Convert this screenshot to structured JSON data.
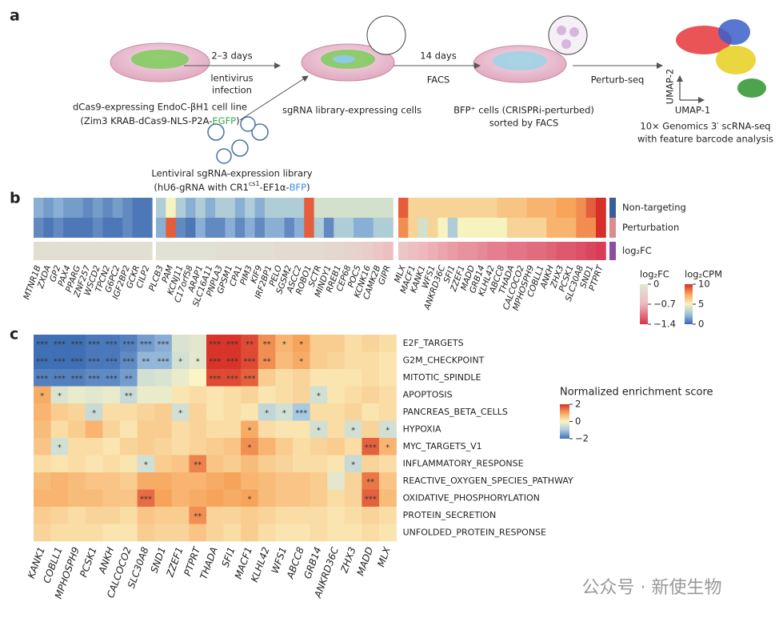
{
  "panel_labels": [
    "a",
    "b",
    "c"
  ],
  "panel_a": {
    "step1_time": "2–3 days",
    "step1_method": [
      "lentivirus",
      "infection"
    ],
    "cells_line": "dCas9-expressing EndoC-βH1 cell line",
    "cells_construct": [
      "(Zim3 KRAB-dCas9-NLS-P2A-",
      "EGFP",
      ")"
    ],
    "library_title": "Lentiviral sgRNA-expression library",
    "library_construct": [
      "(hU6-gRNA with CR1",
      "cs1",
      "-EF1α-",
      "BFP",
      ")"
    ],
    "library_cells": "sgRNA library-expressing cells",
    "step2_time": "14 days",
    "step2_method": "FACS",
    "sorted": [
      "BFP⁺ cells (CRISPRi-perturbed)",
      "sorted by FACS"
    ],
    "step3_method": "Perturb-seq",
    "umap_y": "UMAP-2",
    "umap_x": "UMAP-1",
    "readout": [
      "10× Genomics 3′ scRNA-seq",
      "with feature barcode analysis"
    ]
  },
  "panel_b": {
    "rows": [
      "Non-targeting",
      "Perturbation",
      "log₂FC"
    ],
    "groups": [
      {
        "genes": [
          "MTNR1B",
          "ZXDA",
          "GP2",
          "PAX4",
          "PPARG",
          "ZNF257",
          "WSCD2",
          "TPCN2",
          "G6PC2",
          "IGF2BP2",
          "GCKR",
          "CILP2"
        ],
        "non_targeting": [
          2,
          1.5,
          2,
          1.5,
          1.5,
          1,
          1.5,
          1,
          1.5,
          1,
          0.5,
          0.5
        ],
        "perturbation": [
          1,
          0.5,
          1,
          0.5,
          0.5,
          0.5,
          1,
          0.5,
          0.5,
          1,
          0.5,
          0.5
        ],
        "log2fc": [
          -0.15,
          -0.15,
          -0.15,
          -0.15,
          -0.15,
          -0.15,
          -0.15,
          -0.15,
          -0.15,
          -0.15,
          -0.15,
          -0.15
        ]
      },
      {
        "genes": [
          "PLCB3",
          "PAM",
          "KCNJ11",
          "C17orf58",
          "ARAP1",
          "SLC16A11",
          "PNPLA3",
          "GPSM1",
          "CPA1",
          "PIM3",
          "KIF9",
          "IRF2BP1",
          "PELO",
          "SGSM2",
          "ASCC2",
          "ROBO1",
          "SCTR",
          "MINDY1",
          "RREB1",
          "CEP68",
          "POC5",
          "KCNK16",
          "CAMK2B",
          "GIPR"
        ],
        "non_targeting": [
          3,
          5,
          3,
          2,
          3,
          2,
          3,
          3,
          2,
          3,
          2,
          3,
          3,
          3,
          3,
          9,
          4,
          4,
          4,
          4,
          4,
          4,
          4,
          4
        ],
        "perturbation": [
          2,
          9,
          1,
          0.5,
          2,
          1,
          1,
          2,
          1,
          2,
          1,
          2,
          2,
          1,
          2,
          9,
          3,
          1,
          3,
          3,
          2,
          2,
          3,
          3
        ],
        "log2fc": [
          -0.1,
          -0.1,
          -0.1,
          -0.1,
          -0.1,
          -0.1,
          -0.15,
          -0.15,
          -0.15,
          -0.15,
          -0.15,
          -0.15,
          -0.2,
          -0.2,
          -0.2,
          -0.2,
          -0.2,
          -0.25,
          -0.25,
          -0.3,
          -0.35,
          -0.4,
          -0.5,
          -0.6
        ]
      },
      {
        "genes": [
          "MLX",
          "MACF1",
          "KANK1",
          "WFS1",
          "ANKRD36C",
          "SFI1",
          "ZZEF1",
          "MADD",
          "GRB14",
          "KLHL42",
          "ABCC8",
          "THADA",
          "CALCOCO2",
          "MPHOSPH9",
          "COBLL1",
          "ANKH",
          "ZHX3",
          "PCSK1",
          "SLC30A8",
          "SND1",
          "PTPRT"
        ],
        "non_targeting": [
          9,
          6,
          6,
          6,
          6,
          6,
          6,
          6,
          6,
          6,
          6.5,
          6.5,
          6.5,
          7,
          7,
          7,
          7.5,
          7.5,
          8,
          9,
          11
        ],
        "perturbation": [
          8,
          6,
          4,
          6,
          5,
          3,
          5,
          5,
          5,
          5,
          5,
          6,
          6,
          6,
          6,
          7,
          7,
          7,
          8,
          8,
          10
        ],
        "log2fc": [
          -0.5,
          -0.6,
          -0.7,
          -0.75,
          -0.8,
          -0.85,
          -0.9,
          -0.9,
          -0.95,
          -1,
          -1,
          -1.05,
          -1.05,
          -1.1,
          -1.1,
          -1.15,
          -1.2,
          -1.2,
          -1.25,
          -1.3,
          -1.35
        ]
      }
    ],
    "row_colors": [
      "#3a5e9c",
      "#d98d8d",
      "#8e4ea0"
    ],
    "legend_fc": {
      "title": "log₂FC",
      "lim": [
        -1.4,
        0
      ],
      "colors": [
        "#d8334f",
        "#eeb8bd",
        "#dfe9d8"
      ],
      "ticks": [
        0,
        {
          "value": -0.7,
          "label": "−0.7"
        },
        {
          "value": -1.4,
          "label": "−1.4"
        }
      ]
    },
    "legend_cpm": {
      "title": "log₂CPM",
      "lim": [
        0,
        10
      ],
      "colors": [
        "#3b64ae",
        "#9cc3dd",
        "#f7f3c0",
        "#f8a45a",
        "#d62f27"
      ],
      "ticks": [
        10,
        5,
        0
      ]
    }
  },
  "panel_c": {
    "genes": [
      "KANK1",
      "COBLL1",
      "MPHOSPH9",
      "PCSK1",
      "ANKH",
      "CALCOCO2",
      "SLC30A8",
      "SND1",
      "ZZEF1",
      "PTPRT",
      "THADA",
      "SFI1",
      "MACF1",
      "KLHL42",
      "WFS1",
      "ABCC8",
      "GRB14",
      "ANKRD36C",
      "ZHX3",
      "MADD",
      "MLX"
    ],
    "pathways": [
      "E2F_TARGETS",
      "G2M_CHECKPOINT",
      "MITOTIC_SPINDLE",
      "APOPTOSIS",
      "PANCREAS_BETA_CELLS",
      "HYPOXIA",
      "MYC_TARGETS_V1",
      "INFLAMMATORY_RESPONSE",
      "REACTIVE_OXYGEN_SPECIES_PATHWAY",
      "OXIDATIVE_PHOSPHORYLATION",
      "PROTEIN_SECRETION",
      "UNFOLDED_PROTEIN_RESPONSE"
    ],
    "nes": [
      [
        -2,
        -2,
        -2,
        -1.9,
        -1.9,
        -1.8,
        -1.5,
        -1.3,
        -0.4,
        -0.3,
        2,
        2,
        1.8,
        1.2,
        0.8,
        1,
        0.5,
        0.5,
        0.3,
        0.4,
        0.3
      ],
      [
        -2,
        -2,
        -2,
        -1.9,
        -1.9,
        -1.7,
        -1.2,
        -1.2,
        -0.5,
        -0.3,
        2,
        2,
        1.8,
        1.2,
        0.7,
        0.9,
        0.5,
        0.4,
        0.3,
        0.3,
        0.2
      ],
      [
        -1.8,
        -1.8,
        -1.8,
        -1.7,
        -1.7,
        -1.5,
        -0.5,
        -0.4,
        -0.2,
        0,
        1.8,
        1.8,
        1.6,
        0.5,
        0.3,
        0.4,
        0.2,
        0.2,
        0.2,
        0.3,
        0.2
      ],
      [
        0.9,
        -0.4,
        -0.2,
        -0.3,
        -0.2,
        -0.6,
        -0.2,
        -0.2,
        0.2,
        0.3,
        0.2,
        0.3,
        0.4,
        0.2,
        0.3,
        0.4,
        -0.5,
        0.2,
        0.3,
        0.4,
        0.3
      ],
      [
        0.8,
        0.5,
        0.4,
        -0.6,
        0.3,
        0.3,
        0.4,
        0.5,
        -0.5,
        0.4,
        0.2,
        0.3,
        0.2,
        -0.7,
        -0.5,
        -1,
        0.3,
        0.3,
        0.4,
        0.2,
        0.3
      ],
      [
        0.7,
        0.3,
        0.5,
        0.8,
        0.4,
        0.2,
        0.5,
        0.5,
        0.3,
        0.4,
        0.3,
        0.3,
        0.9,
        0.3,
        0.2,
        0.2,
        -0.5,
        0.3,
        -0.5,
        0.4,
        -0.5
      ],
      [
        0.6,
        -0.5,
        0.3,
        0.3,
        0.2,
        0.4,
        0.5,
        0.4,
        0.3,
        0.4,
        0.5,
        0.6,
        1.2,
        0.8,
        0.5,
        0.3,
        0.4,
        0.5,
        0.3,
        1.6,
        0.8
      ],
      [
        0.3,
        0.2,
        0.3,
        0.2,
        0.3,
        0.2,
        -0.5,
        0.5,
        0.6,
        1.3,
        0.6,
        0.5,
        0.7,
        0.5,
        0.4,
        0.3,
        0.3,
        0.2,
        -0.6,
        0.4,
        0.3
      ],
      [
        0.7,
        0.8,
        0.7,
        0.6,
        0.6,
        0.5,
        0.9,
        0.9,
        0.8,
        0.8,
        0.9,
        1,
        0.8,
        0.7,
        0.6,
        0.6,
        0.5,
        -0.3,
        0.4,
        1.4,
        0.6
      ],
      [
        0.8,
        0.8,
        0.7,
        0.7,
        0.6,
        0.6,
        1.5,
        1,
        0.8,
        0.9,
        1,
        0.9,
        1,
        0.7,
        0.6,
        0.6,
        0.5,
        0.3,
        0.4,
        1.6,
        0.7
      ],
      [
        0.5,
        0.4,
        0.3,
        0.4,
        0.4,
        0.3,
        0.6,
        0.5,
        0.5,
        1.2,
        0.4,
        0.4,
        0.5,
        0.4,
        0.3,
        0.3,
        0.3,
        0.2,
        0.3,
        0.4,
        0.3
      ],
      [
        0.4,
        0.3,
        0.3,
        0.3,
        0.2,
        0.2,
        0.5,
        0.4,
        0.4,
        0.6,
        0.4,
        0.3,
        0.5,
        0.3,
        0.2,
        0.2,
        0.3,
        0.2,
        0.2,
        0.3,
        0.2
      ]
    ],
    "stars": [
      [
        "***",
        "***",
        "***",
        "***",
        "***",
        "***",
        "***",
        "***",
        null,
        null,
        "***",
        "***",
        "**",
        "**",
        "*",
        "*",
        null,
        null,
        null,
        null,
        null
      ],
      [
        "***",
        "***",
        "***",
        "***",
        "***",
        "***",
        "**",
        "***",
        "*",
        "*",
        "***",
        "***",
        "***",
        "**",
        null,
        "*",
        null,
        null,
        null,
        null,
        null
      ],
      [
        "***",
        "***",
        "***",
        "***",
        "***",
        "**",
        null,
        null,
        null,
        null,
        "***",
        "***",
        "***",
        null,
        null,
        null,
        null,
        null,
        null,
        null,
        null
      ],
      [
        "*",
        "*",
        null,
        null,
        null,
        "**",
        null,
        null,
        null,
        null,
        null,
        null,
        null,
        null,
        null,
        null,
        "*",
        null,
        null,
        null,
        null
      ],
      [
        null,
        null,
        null,
        "*",
        null,
        null,
        null,
        null,
        "*",
        null,
        null,
        null,
        null,
        "*",
        "*",
        "***",
        null,
        null,
        null,
        null,
        null
      ],
      [
        null,
        null,
        null,
        null,
        null,
        null,
        null,
        null,
        null,
        null,
        null,
        null,
        "*",
        null,
        null,
        null,
        "*",
        null,
        "*",
        null,
        "*"
      ],
      [
        null,
        "*",
        null,
        null,
        null,
        null,
        null,
        null,
        null,
        null,
        null,
        null,
        "*",
        null,
        null,
        null,
        null,
        null,
        null,
        "***",
        "*"
      ],
      [
        null,
        null,
        null,
        null,
        null,
        null,
        "*",
        null,
        null,
        "**",
        null,
        null,
        null,
        null,
        null,
        null,
        null,
        null,
        "*",
        null,
        null
      ],
      [
        null,
        null,
        null,
        null,
        null,
        null,
        null,
        null,
        null,
        null,
        null,
        null,
        null,
        null,
        null,
        null,
        null,
        null,
        null,
        "**",
        null
      ],
      [
        null,
        null,
        null,
        null,
        null,
        null,
        "***",
        null,
        null,
        null,
        null,
        null,
        "*",
        null,
        null,
        null,
        null,
        null,
        null,
        "***",
        null
      ],
      [
        null,
        null,
        null,
        null,
        null,
        null,
        null,
        null,
        null,
        "**",
        null,
        null,
        null,
        null,
        null,
        null,
        null,
        null,
        null,
        null,
        null
      ],
      [
        null,
        null,
        null,
        null,
        null,
        null,
        null,
        null,
        null,
        null,
        null,
        null,
        null,
        null,
        null,
        null,
        null,
        null,
        null,
        null,
        null
      ]
    ],
    "legend": {
      "title": "Normalized enrichment score",
      "lim": [
        -2,
        2
      ],
      "colors": [
        "#3f6fb5",
        "#a8c9e2",
        "#fbf4c4",
        "#f7a45b",
        "#d8342a"
      ],
      "ticks": [
        2,
        0,
        {
          "value": -2,
          "label": "−2"
        }
      ]
    }
  },
  "watermark": "公众号 · 新使生物"
}
